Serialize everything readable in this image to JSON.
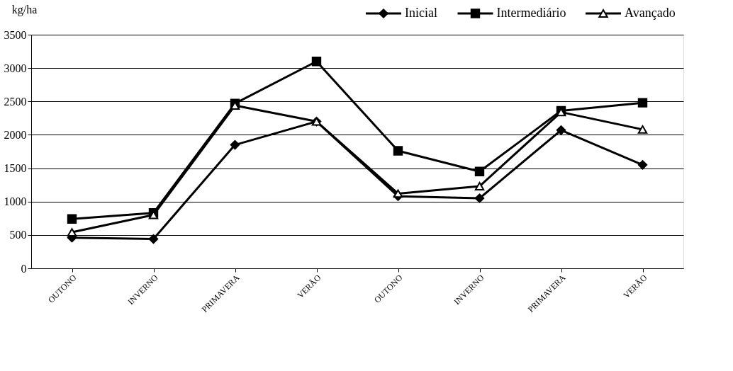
{
  "chart_data": {
    "type": "line",
    "ylabel": "kg/ha",
    "categories": [
      "OUTONO",
      "INVERNO",
      "PRIMAVERA",
      "VERÃO",
      "OUTONO",
      "INVERNO",
      "PRIMAVERA",
      "VERÃO"
    ],
    "series": [
      {
        "name": "Inicial",
        "color": "#000000",
        "marker": "diamond",
        "values": [
          460,
          440,
          1850,
          2200,
          1080,
          1050,
          2070,
          1550
        ]
      },
      {
        "name": "Intermediário",
        "color": "#000000",
        "marker": "square",
        "values": [
          740,
          830,
          2470,
          3100,
          1760,
          1450,
          2360,
          2480
        ]
      },
      {
        "name": "Avançado",
        "color": "#000000",
        "marker": "triangle",
        "values": [
          540,
          800,
          2440,
          2200,
          1120,
          1230,
          2340,
          2080
        ]
      }
    ],
    "ylim": [
      0,
      3500
    ],
    "yticks": [
      0,
      500,
      1000,
      1500,
      2000,
      2500,
      3000,
      3500
    ],
    "grid": "y",
    "legend": "top right",
    "line_style": "solid"
  }
}
